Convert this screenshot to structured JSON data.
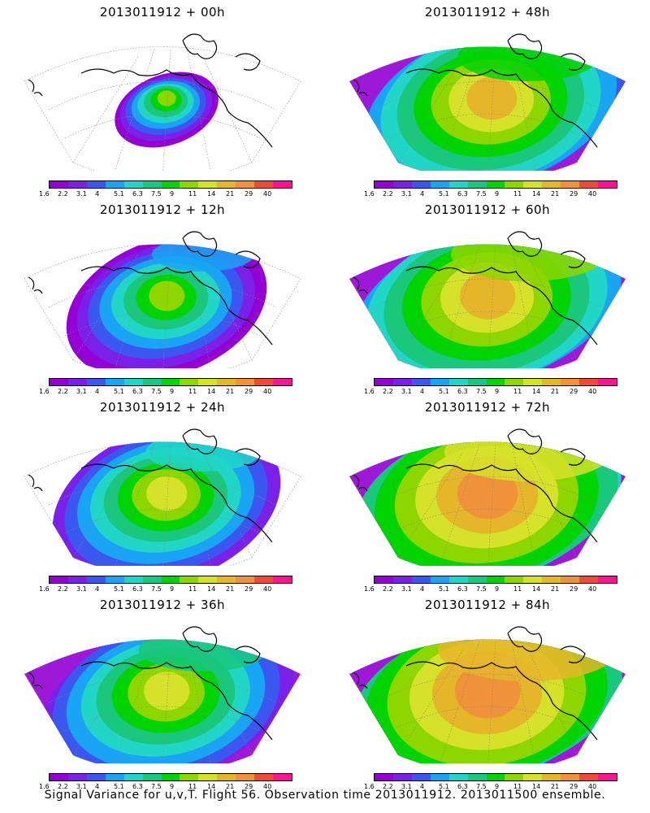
{
  "colorbar": {
    "ticks": [
      "1.6",
      "2.2",
      "3.1",
      "4",
      "5.1",
      "6.3",
      "7.5",
      "9",
      "11",
      "14",
      "21",
      "29",
      "40"
    ],
    "colors": [
      "#9400d3",
      "#7a20e8",
      "#3b57f0",
      "#19a4f5",
      "#21d6c7",
      "#19c77d",
      "#00d400",
      "#8ed600",
      "#d6e22a",
      "#e6b62a",
      "#f0923a",
      "#f04a3a",
      "#ff1493"
    ]
  },
  "panels": [
    {
      "title": "2013011912  +  00h",
      "level": 0
    },
    {
      "title": "2013011912  +  48h",
      "level": 4
    },
    {
      "title": "2013011912  +  12h",
      "level": 1
    },
    {
      "title": "2013011912  +  60h",
      "level": 5
    },
    {
      "title": "2013011912  +  24h",
      "level": 2
    },
    {
      "title": "2013011912  +  72h",
      "level": 6
    },
    {
      "title": "2013011912  +  36h",
      "level": 3
    },
    {
      "title": "2013011912  +  84h",
      "level": 7
    }
  ],
  "footer": "Signal Variance for u,v,T. Flight 56. Observation time 2013011912. 2013011500 ensemble."
}
